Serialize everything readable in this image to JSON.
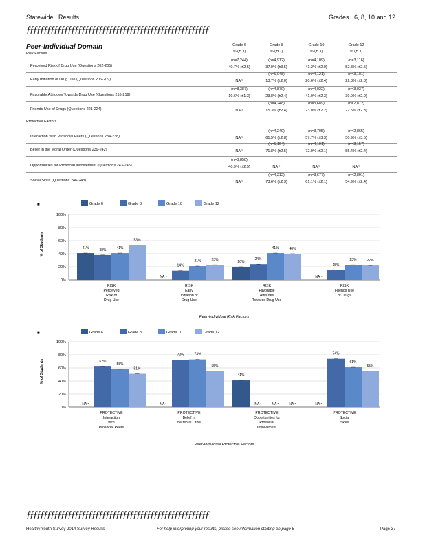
{
  "header": {
    "left_a": "Statewide",
    "left_b": "Results",
    "grades_label": "Grades",
    "grades": "6, 8, 10 and 12"
  },
  "rule_text": "ƒƒƒƒƒƒƒƒƒƒƒƒƒƒƒƒƒƒƒƒƒƒƒƒƒƒƒƒƒƒƒƒƒƒƒƒƒƒƒƒƒƒƒƒƒƒƒƒƒƒƒƒƒ",
  "table": {
    "domain": "Peer-Individual Domain",
    "risk_title": "Risk Factors",
    "protective_title": "Protective Factors",
    "pct_ci": "% (±CI)",
    "grades": [
      "Grade 6",
      "Grade 8",
      "Grade 10",
      "Grade 12"
    ],
    "rows": [
      {
        "label": "Perceived Risk of Drug Use (Questions 202-205)",
        "n": [
          "(n=7,244)",
          "(n=4,912)",
          "(n=4,109)",
          "(n=3,116)"
        ],
        "v": [
          "40.7% (±2.5)",
          "37.9% (±3.5)",
          "41.2% (±2.9)",
          "52.8% (±2.5)"
        ]
      },
      {
        "label": "Early Initiation of Drug Use (Questions 206-209)",
        "n": [
          "",
          "(n=5,048)",
          "(n=4,121)",
          "(n=3,101)"
        ],
        "v": [
          "NA ⁵",
          "13.7% (±2.0)",
          "20.6% (±2.4)",
          "22.8% (±2.8)"
        ]
      },
      {
        "label": "Favorable Attitudes Towards Drug Use (Questions 216-219)",
        "n": [
          "(n=8,387)",
          "(n=4,870)",
          "(n=4,022)",
          "(n=3,037)"
        ],
        "v": [
          "19.6% (±1.3)",
          "23.8% (±2.4)",
          "41.0% (±2.3)",
          "39.9% (±2.9)"
        ]
      },
      {
        "label": "Friends Use of Drugs (Questions 221-224)",
        "n": [
          "",
          "(n=4,248)",
          "(n=3,689)",
          "(n=2,872)"
        ],
        "v": [
          "NA ⁵",
          "15.3% (±2.4)",
          "23.0% (±2.2)",
          "22.5% (±2.3)"
        ]
      },
      {
        "label": "Interaction With Prosocial Peers (Questions 234-238)",
        "n": [
          "",
          "(n=4,249)",
          "(n=3,705)",
          "(n=2,865)"
        ],
        "v": [
          "NA ⁵",
          "61.5% (±2.8)",
          "57.7% (±3.3)",
          "50.9% (±3.5)"
        ]
      },
      {
        "label": "Belief In the Moral Order (Questions 239-242)",
        "n": [
          "",
          "(n=5,164)",
          "(n=4,191)",
          "(n=3,157)"
        ],
        "v": [
          "NA ⁵",
          "71.8% (±2.5)",
          "72.9% (±2.1)",
          "55.4% (±2.4)"
        ]
      },
      {
        "label": "Opportunities for Prosocial Involvement (Questions 243-245)",
        "n": [
          "(n=8,858)",
          "",
          "",
          ""
        ],
        "v": [
          "40.9% (±2.5)",
          "NA ⁵",
          "NA ⁵",
          "NA ⁵"
        ]
      },
      {
        "label": "Social Skills (Questions 246-248)",
        "n": [
          "",
          "(n=4,212)",
          "(n=3,677)",
          "(n=2,891)"
        ],
        "v": [
          "NA ⁵",
          "73.6% (±2.3)",
          "61.1% (±2.1)",
          "54.9% (±2.4)"
        ]
      }
    ]
  },
  "legend": [
    "Grade 6",
    "Grade 8",
    "Grade 10",
    "Grade 12"
  ],
  "colors": {
    "g6": "#33598c",
    "g8": "#4469a8",
    "g10": "#5a88c8",
    "g12": "#8faadc"
  },
  "chart_data": [
    {
      "type": "bar",
      "title": "Peer-Individual Risk Factors",
      "ylabel": "% of Students",
      "ylim": [
        0,
        100
      ],
      "yticks": [
        "0%",
        "20%",
        "40%",
        "60%",
        "80%",
        "100%"
      ],
      "categories": [
        [
          "RISK",
          "Perceived",
          "Risk of",
          "Drug Use"
        ],
        [
          "RISK",
          "Early",
          "Initiation of",
          "Drug Use"
        ],
        [
          "RISK",
          "Favorable",
          "Attitudes",
          "Towards Drug Use"
        ],
        [
          "RISK",
          "Friends Use",
          "of Drugs"
        ]
      ],
      "series": [
        {
          "name": "Grade 6",
          "values": [
            41,
            null,
            20,
            null
          ]
        },
        {
          "name": "Grade 8",
          "values": [
            38,
            14,
            24,
            15
          ]
        },
        {
          "name": "Grade 10",
          "values": [
            41,
            21,
            41,
            23
          ]
        },
        {
          "name": "Grade 12",
          "values": [
            53,
            23,
            40,
            22
          ]
        }
      ],
      "labels": [
        [
          "41%",
          "38%",
          "41%",
          "53%"
        ],
        [
          "NA ⁵",
          "14%",
          "21%",
          "23%"
        ],
        [
          "20%",
          "24%",
          "41%",
          "40%"
        ],
        [
          "NA ⁵",
          "15%",
          "23%",
          "22%"
        ]
      ]
    },
    {
      "type": "bar",
      "title": "Peer-Individual Protective Factors",
      "ylabel": "% of Students",
      "ylim": [
        0,
        100
      ],
      "yticks": [
        "0%",
        "20%",
        "40%",
        "60%",
        "80%",
        "100%"
      ],
      "categories": [
        [
          "PROTECTIVE",
          "Interaction",
          "with",
          "Prosocial Peers"
        ],
        [
          "PROTECTIVE",
          "Belief In",
          "the Moral Order"
        ],
        [
          "PROTECTIVE",
          "Opportunities for",
          "Prosocial",
          "Involvement"
        ],
        [
          "PROTECTIVE",
          "Social",
          "Skills"
        ]
      ],
      "series": [
        {
          "name": "Grade 6",
          "values": [
            null,
            null,
            41,
            null
          ]
        },
        {
          "name": "Grade 8",
          "values": [
            62,
            72,
            null,
            74
          ]
        },
        {
          "name": "Grade 10",
          "values": [
            58,
            73,
            null,
            61
          ]
        },
        {
          "name": "Grade 12",
          "values": [
            51,
            55,
            null,
            55
          ]
        }
      ],
      "labels": [
        [
          "NA ⁵",
          "62%",
          "58%",
          "51%"
        ],
        [
          "NA ⁵",
          "72%",
          "73%",
          "55%"
        ],
        [
          "41%",
          "NA ⁵",
          "NA ⁵",
          "NA ⁵"
        ],
        [
          "NA ⁵",
          "74%",
          "61%",
          "55%"
        ]
      ]
    }
  ],
  "footer": {
    "left": "Healthy Youth Survey 2014 Survey Results",
    "mid": "For help interpreting your results, please see information starting on",
    "link": "page 5",
    "page": "Page 37"
  }
}
